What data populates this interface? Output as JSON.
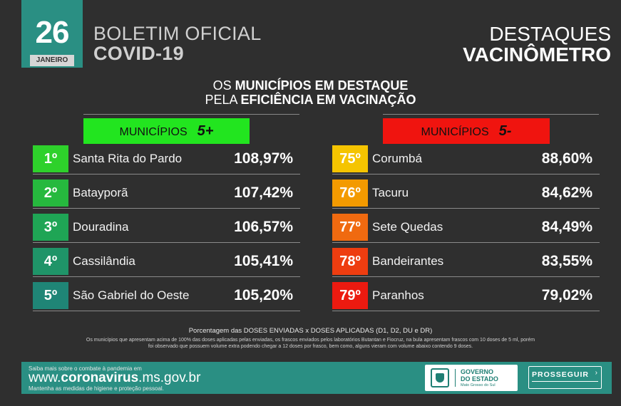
{
  "header": {
    "day": "26",
    "month": "JANEIRO",
    "bulletin_line1": "BOLETIM OFICIAL",
    "bulletin_line2": "COVID-19",
    "section_line1": "DESTAQUES",
    "section_line2": "VACINÔMETRO"
  },
  "headline": {
    "line1_pre": "OS ",
    "line1_bold": "MUNICÍPIOS EM DESTAQUE",
    "line2_pre": "PELA ",
    "line2_bold": "EFICIÊNCIA EM VACINAÇÃO"
  },
  "top_list": {
    "label": "MUNICÍPIOS",
    "badge": "5+",
    "label_color": "#22e51f",
    "rows": [
      {
        "rank": "1º",
        "name": "Santa Rita do Pardo",
        "pct": "108,97%",
        "color": "#2ed12b"
      },
      {
        "rank": "2º",
        "name": "Batayporã",
        "pct": "107,42%",
        "color": "#26b93e"
      },
      {
        "rank": "3º",
        "name": "Douradina",
        "pct": "106,57%",
        "color": "#1fa555"
      },
      {
        "rank": "4º",
        "name": "Cassilândia",
        "pct": "105,41%",
        "color": "#1f9468"
      },
      {
        "rank": "5º",
        "name": "São Gabriel do Oeste",
        "pct": "105,20%",
        "color": "#1f8576"
      }
    ]
  },
  "bottom_list": {
    "label": "MUNICÍPIOS",
    "badge": "5-",
    "label_color": "#f0140f",
    "rows": [
      {
        "rank": "75º",
        "name": "Corumbá",
        "pct": "88,60%",
        "color": "#f5c400"
      },
      {
        "rank": "76º",
        "name": "Tacuru",
        "pct": "84,62%",
        "color": "#f39a00"
      },
      {
        "rank": "77º",
        "name": "Sete Quedas",
        "pct": "84,49%",
        "color": "#f06a10"
      },
      {
        "rank": "78º",
        "name": "Bandeirantes",
        "pct": "83,55%",
        "color": "#ee3d10"
      },
      {
        "rank": "79º",
        "name": "Paranhos",
        "pct": "79,02%",
        "color": "#ec1a10"
      }
    ]
  },
  "notes": {
    "line1": "Porcentagem das DOSES ENVIADAS x DOSES APLICADAS (D1, D2, DU e DR)",
    "line2": "Os municípios que apresentam acima de 100% das doses aplicadas pelas enviadas, os frascos enviados pelos laboratórios Butantan e Fiocruz, na bula apresentam frascos com 10 doses de 5 ml, porém foi observado que possuem volume extra podendo chegar a 12 doses por frasco, bem como, alguns vieram com volume abaixo contendo 9 doses."
  },
  "footer": {
    "saiba": "Saiba mais sobre o combate à pandemia em",
    "url_pre": "www.",
    "url_bold": "coronavirus",
    "url_post": ".ms.gov.br",
    "mantenha": "Mantenha as medidas de higiene e proteção pessoal.",
    "gov_line1": "GOVERNO",
    "gov_line2": "DO ESTADO",
    "gov_line3": "Mato Grosso do Sul",
    "prosseguir": "PROSSEGUIR"
  }
}
